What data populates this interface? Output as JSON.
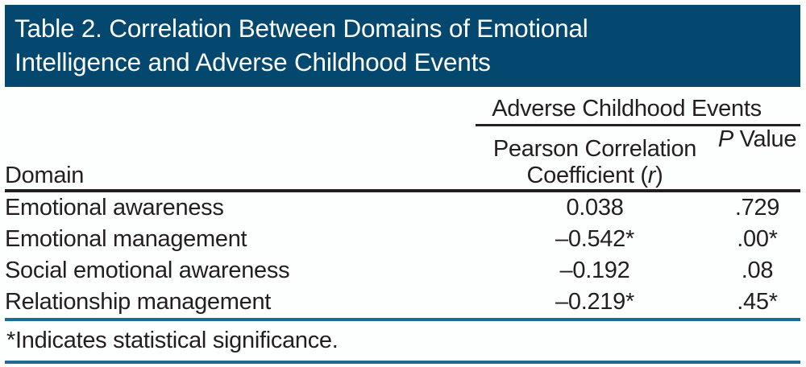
{
  "table": {
    "title_line1": "Table 2. Correlation Between Domains of Emotional",
    "title_line2": "Intelligence and Adverse Childhood Events",
    "span_header": "Adverse Childhood Events",
    "columns": {
      "domain": "Domain",
      "pearson_line1": "Pearson Correlation",
      "pearson_line2_prefix": "Coefficient (",
      "pearson_r_symbol": "r",
      "pearson_line2_suffix": ")",
      "p_italic": "P",
      "p_rest": " Value"
    },
    "rows": [
      {
        "domain": "Emotional awareness",
        "r": "0.038",
        "p": ".729"
      },
      {
        "domain": "Emotional management",
        "r": "–0.542*",
        "p": ".00*"
      },
      {
        "domain": "Social emotional awareness",
        "r": "–0.192",
        "p": ".08"
      },
      {
        "domain": "Relationship management",
        "r": "–0.219*",
        "p": ".45*"
      }
    ],
    "footnote": "*Indicates statistical significance."
  },
  "colors": {
    "title_bar_background": "#05486f",
    "title_text": "#ffffff",
    "black_rule": "#231f20",
    "blue_rule": "#1e6b94",
    "body_text": "#231f20"
  },
  "chart_data": {
    "type": "table",
    "title": "Table 2. Correlation Between Domains of Emotional Intelligence and Adverse Childhood Events",
    "column_group": "Adverse Childhood Events",
    "columns": [
      "Domain",
      "Pearson Correlation Coefficient (r)",
      "P Value"
    ],
    "rows": [
      [
        "Emotional awareness",
        "0.038",
        ".729"
      ],
      [
        "Emotional management",
        "–0.542*",
        ".00*"
      ],
      [
        "Social emotional awareness",
        "–0.192",
        ".08"
      ],
      [
        "Relationship management",
        "–0.219*",
        ".45*"
      ]
    ],
    "footnote": "*Indicates statistical significance."
  }
}
